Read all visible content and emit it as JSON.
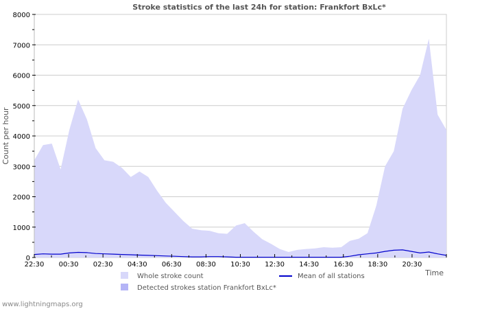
{
  "chart_data": {
    "type": "area",
    "title": "Stroke statistics of the last 24h for station: Frankfort BxLc*",
    "xlabel": "Time",
    "ylabel": "Count per hour",
    "ylim": [
      0,
      8000
    ],
    "yticks": [
      0,
      1000,
      2000,
      3000,
      4000,
      5000,
      6000,
      7000,
      8000
    ],
    "xtick_labels": [
      "22:30",
      "00:30",
      "02:30",
      "04:30",
      "06:30",
      "08:30",
      "10:30",
      "12:30",
      "14:30",
      "16:30",
      "18:30",
      "20:30"
    ],
    "grid": true,
    "legend_position": "bottom",
    "x": [
      "22:30",
      "23:00",
      "23:30",
      "00:00",
      "00:30",
      "01:00",
      "01:30",
      "02:00",
      "02:30",
      "03:00",
      "03:30",
      "04:00",
      "04:30",
      "05:00",
      "05:30",
      "06:00",
      "06:30",
      "07:00",
      "07:30",
      "08:00",
      "08:30",
      "09:00",
      "09:30",
      "10:00",
      "10:30",
      "11:00",
      "11:30",
      "12:00",
      "12:30",
      "13:00",
      "13:30",
      "14:00",
      "14:30",
      "15:00",
      "15:30",
      "16:00",
      "16:30",
      "17:00",
      "17:30",
      "18:00",
      "18:30",
      "19:00",
      "19:30",
      "20:00",
      "20:30",
      "21:00",
      "21:30",
      "22:00"
    ],
    "series": [
      {
        "name": "Whole stroke count",
        "color": "#d8d8fa",
        "values": [
          3200,
          3700,
          3750,
          2900,
          4200,
          5200,
          4550,
          3600,
          3200,
          3150,
          2950,
          2650,
          2830,
          2650,
          2200,
          1800,
          1500,
          1200,
          950,
          900,
          880,
          800,
          780,
          1050,
          1130,
          850,
          600,
          450,
          280,
          180,
          250,
          280,
          300,
          340,
          320,
          340,
          550,
          620,
          800,
          1700,
          3000,
          3500,
          4900,
          5500,
          6000,
          7200,
          4700,
          4200
        ]
      },
      {
        "name": "Detected strokes station Frankfort BxLc*",
        "color": "#b4b4f6",
        "values": [
          0,
          0,
          0,
          0,
          0,
          0,
          0,
          0,
          0,
          0,
          0,
          0,
          0,
          0,
          0,
          0,
          0,
          0,
          0,
          0,
          0,
          0,
          0,
          0,
          0,
          0,
          0,
          0,
          0,
          0,
          0,
          0,
          0,
          0,
          0,
          0,
          0,
          0,
          0,
          0,
          0,
          0,
          0,
          0,
          0,
          0,
          0,
          0
        ]
      },
      {
        "name": "Mean of all stations",
        "color": "#0000cc",
        "values": [
          100,
          120,
          110,
          110,
          150,
          170,
          160,
          130,
          120,
          110,
          100,
          90,
          80,
          70,
          60,
          50,
          40,
          30,
          20,
          20,
          30,
          30,
          20,
          10,
          10,
          10,
          10,
          10,
          10,
          10,
          10,
          10,
          10,
          10,
          10,
          10,
          40,
          90,
          120,
          150,
          200,
          240,
          250,
          200,
          150,
          180,
          120,
          70
        ]
      }
    ]
  },
  "legend": {
    "items": [
      {
        "label": "Whole stroke count",
        "color": "#d8d8fa"
      },
      {
        "label": "Detected strokes station Frankfort BxLc*",
        "color": "#b4b4f6"
      },
      {
        "label": "Mean of all stations",
        "color": "#0000cc"
      }
    ]
  },
  "footer": {
    "text": "www.lightningmaps.org"
  }
}
